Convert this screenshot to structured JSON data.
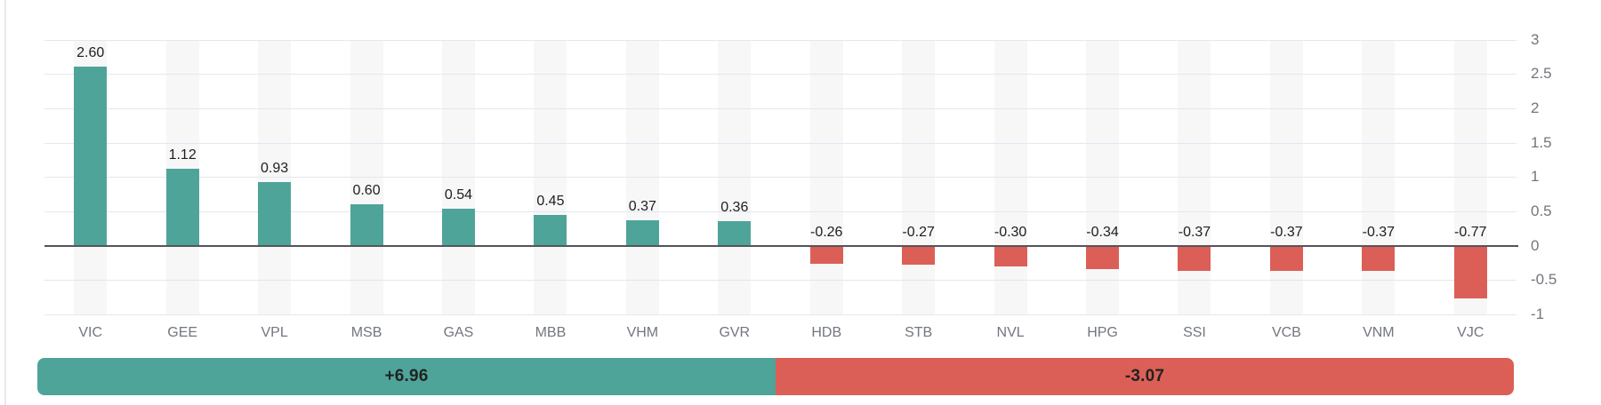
{
  "chart_data": {
    "type": "bar",
    "title": "",
    "xlabel": "",
    "ylabel": "",
    "categories": [
      "VIC",
      "GEE",
      "VPL",
      "MSB",
      "GAS",
      "MBB",
      "VHM",
      "GVR",
      "HDB",
      "STB",
      "NVL",
      "HPG",
      "SSI",
      "VCB",
      "VNM",
      "VJC"
    ],
    "values": [
      2.6,
      1.12,
      0.93,
      0.6,
      0.54,
      0.45,
      0.37,
      0.36,
      -0.26,
      -0.27,
      -0.3,
      -0.34,
      -0.37,
      -0.37,
      -0.37,
      -0.77
    ],
    "value_labels": [
      "2.60",
      "1.12",
      "0.93",
      "0.60",
      "0.54",
      "0.45",
      "0.37",
      "0.36",
      "-0.26",
      "-0.27",
      "-0.30",
      "-0.34",
      "-0.37",
      "-0.37",
      "-0.37",
      "-0.77"
    ],
    "y_ticks": [
      {
        "value": 3,
        "label": "3"
      },
      {
        "value": 2.5,
        "label": "2.5"
      },
      {
        "value": 2,
        "label": "2"
      },
      {
        "value": 1.5,
        "label": "1.5"
      },
      {
        "value": 1,
        "label": "1"
      },
      {
        "value": 0.5,
        "label": "0.5"
      },
      {
        "value": 0,
        "label": "0"
      },
      {
        "value": -0.5,
        "label": "-0.5"
      },
      {
        "value": -1,
        "label": "-1"
      }
    ],
    "ylim": [
      -1,
      3
    ],
    "grid": true,
    "legend": false,
    "axis_side": "right",
    "colors": {
      "positive": "#4FA49A",
      "negative": "#DC5F57",
      "gridline": "#E4E7F0",
      "zero_line": "#54555B",
      "column_stripe": "#F7F7F8",
      "value_label": "#1E1E1E",
      "category_label": "#72767E",
      "axis_label": "#74767C"
    },
    "summary": {
      "positive_label": "+6.96",
      "negative_label": "-3.07"
    }
  }
}
